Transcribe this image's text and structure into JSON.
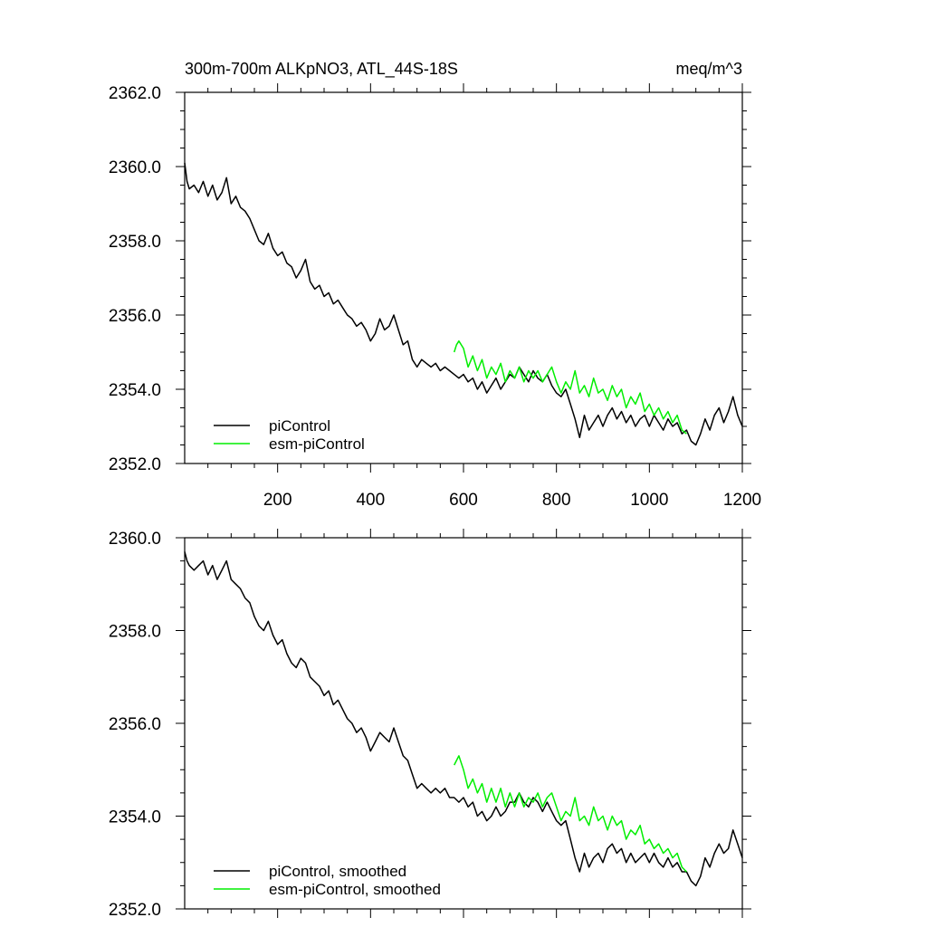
{
  "chart_data": [
    {
      "type": "line",
      "title_left": "300m-700m ALKpNO3, ATL_44S-18S",
      "title_right": "meq/m^3",
      "xlim": [
        0,
        1200
      ],
      "ylim": [
        2352.0,
        2362.0
      ],
      "x_ticks": [
        200,
        400,
        600,
        800,
        1000,
        1200
      ],
      "x_tick_labels": [
        "200",
        "400",
        "600",
        "800",
        "1000",
        "1200"
      ],
      "y_ticks": [
        2352.0,
        2354.0,
        2356.0,
        2358.0,
        2360.0,
        2362.0
      ],
      "y_tick_labels": [
        "2352.0",
        "2354.0",
        "2356.0",
        "2358.0",
        "2360.0",
        "2362.0"
      ],
      "legend_position": "bottom-left",
      "series": [
        {
          "name": "piControl",
          "color": "#000000",
          "x": [
            0,
            5,
            10,
            20,
            30,
            40,
            50,
            60,
            70,
            80,
            90,
            100,
            110,
            120,
            130,
            140,
            150,
            160,
            170,
            180,
            190,
            200,
            210,
            220,
            230,
            240,
            250,
            260,
            270,
            280,
            290,
            300,
            310,
            320,
            330,
            340,
            350,
            360,
            370,
            380,
            390,
            400,
            410,
            420,
            430,
            440,
            450,
            460,
            470,
            480,
            490,
            500,
            510,
            520,
            530,
            540,
            550,
            560,
            570,
            580,
            590,
            600,
            610,
            620,
            630,
            640,
            650,
            660,
            670,
            680,
            690,
            700,
            710,
            720,
            730,
            740,
            750,
            760,
            770,
            780,
            790,
            800,
            810,
            820,
            830,
            840,
            850,
            860,
            870,
            880,
            890,
            900,
            910,
            920,
            930,
            940,
            950,
            960,
            970,
            980,
            990,
            1000,
            1010,
            1020,
            1030,
            1040,
            1050,
            1060,
            1070,
            1080,
            1090,
            1100,
            1110,
            1120,
            1130,
            1140,
            1150,
            1160,
            1170,
            1180,
            1190,
            1200
          ],
          "values": [
            2360.1,
            2359.6,
            2359.4,
            2359.5,
            2359.3,
            2359.6,
            2359.2,
            2359.5,
            2359.1,
            2359.3,
            2359.7,
            2359.0,
            2359.2,
            2358.9,
            2358.8,
            2358.6,
            2358.3,
            2358.0,
            2357.9,
            2358.2,
            2357.8,
            2357.6,
            2357.7,
            2357.4,
            2357.3,
            2357.0,
            2357.2,
            2357.5,
            2356.9,
            2356.7,
            2356.8,
            2356.5,
            2356.6,
            2356.3,
            2356.4,
            2356.2,
            2356.0,
            2355.9,
            2355.7,
            2355.8,
            2355.6,
            2355.3,
            2355.5,
            2355.9,
            2355.6,
            2355.7,
            2356.0,
            2355.6,
            2355.2,
            2355.3,
            2354.8,
            2354.6,
            2354.8,
            2354.7,
            2354.6,
            2354.7,
            2354.5,
            2354.6,
            2354.5,
            2354.4,
            2354.3,
            2354.4,
            2354.2,
            2354.3,
            2354.0,
            2354.2,
            2353.9,
            2354.1,
            2354.3,
            2354.0,
            2354.2,
            2354.4,
            2354.3,
            2354.6,
            2354.4,
            2354.2,
            2354.5,
            2354.3,
            2354.2,
            2354.4,
            2354.1,
            2353.9,
            2353.8,
            2354.0,
            2353.6,
            2353.2,
            2352.7,
            2353.3,
            2352.9,
            2353.1,
            2353.3,
            2353.0,
            2353.3,
            2353.5,
            2353.2,
            2353.4,
            2353.1,
            2353.3,
            2353.0,
            2353.2,
            2353.3,
            2353.0,
            2353.3,
            2353.1,
            2352.9,
            2353.2,
            2353.0,
            2353.1,
            2352.8,
            2352.9,
            2352.6,
            2352.5,
            2352.8,
            2353.2,
            2352.9,
            2353.3,
            2353.5,
            2353.1,
            2353.4,
            2353.8,
            2353.3,
            2353.0
          ]
        },
        {
          "name": "esm-piControl",
          "color": "#00ee00",
          "x": [
            580,
            585,
            590,
            600,
            610,
            620,
            630,
            640,
            650,
            660,
            670,
            680,
            690,
            700,
            710,
            720,
            730,
            740,
            750,
            760,
            770,
            780,
            790,
            800,
            810,
            820,
            830,
            840,
            850,
            860,
            870,
            880,
            890,
            900,
            910,
            920,
            930,
            940,
            950,
            960,
            970,
            980,
            990,
            1000,
            1010,
            1020,
            1030,
            1040,
            1050,
            1060,
            1070,
            1080
          ],
          "values": [
            2355.0,
            2355.2,
            2355.3,
            2355.1,
            2354.6,
            2354.9,
            2354.5,
            2354.8,
            2354.3,
            2354.6,
            2354.4,
            2354.7,
            2354.2,
            2354.5,
            2354.3,
            2354.6,
            2354.2,
            2354.5,
            2354.3,
            2354.5,
            2354.2,
            2354.4,
            2354.6,
            2354.2,
            2353.9,
            2354.2,
            2354.0,
            2354.5,
            2353.9,
            2354.1,
            2353.8,
            2354.3,
            2353.9,
            2354.0,
            2353.7,
            2354.1,
            2353.8,
            2354.0,
            2353.5,
            2353.8,
            2353.6,
            2353.9,
            2353.4,
            2353.6,
            2353.3,
            2353.5,
            2353.2,
            2353.4,
            2353.1,
            2353.3,
            2352.9,
            2352.8
          ]
        }
      ]
    },
    {
      "type": "line",
      "xlim": [
        0,
        1200
      ],
      "ylim": [
        2352.0,
        2360.0
      ],
      "x_ticks": [
        200,
        400,
        600,
        800,
        1000,
        1200
      ],
      "y_ticks": [
        2352.0,
        2354.0,
        2356.0,
        2358.0,
        2360.0
      ],
      "y_tick_labels": [
        "2352.0",
        "2354.0",
        "2356.0",
        "2358.0",
        "2360.0"
      ],
      "legend_position": "bottom-left",
      "series": [
        {
          "name": "piControl, smoothed",
          "color": "#000000",
          "x": [
            0,
            5,
            10,
            20,
            30,
            40,
            50,
            60,
            70,
            80,
            90,
            100,
            110,
            120,
            130,
            140,
            150,
            160,
            170,
            180,
            190,
            200,
            210,
            220,
            230,
            240,
            250,
            260,
            270,
            280,
            290,
            300,
            310,
            320,
            330,
            340,
            350,
            360,
            370,
            380,
            390,
            400,
            410,
            420,
            430,
            440,
            450,
            460,
            470,
            480,
            490,
            500,
            510,
            520,
            530,
            540,
            550,
            560,
            570,
            580,
            590,
            600,
            610,
            620,
            630,
            640,
            650,
            660,
            670,
            680,
            690,
            700,
            710,
            720,
            730,
            740,
            750,
            760,
            770,
            780,
            790,
            800,
            810,
            820,
            830,
            840,
            850,
            860,
            870,
            880,
            890,
            900,
            910,
            920,
            930,
            940,
            950,
            960,
            970,
            980,
            990,
            1000,
            1010,
            1020,
            1030,
            1040,
            1050,
            1060,
            1070,
            1080,
            1090,
            1100,
            1110,
            1120,
            1130,
            1140,
            1150,
            1160,
            1170,
            1180,
            1190,
            1200
          ],
          "values": [
            2359.7,
            2359.5,
            2359.4,
            2359.3,
            2359.4,
            2359.5,
            2359.2,
            2359.4,
            2359.1,
            2359.3,
            2359.5,
            2359.1,
            2359.0,
            2358.9,
            2358.7,
            2358.6,
            2358.3,
            2358.1,
            2358.0,
            2358.2,
            2357.9,
            2357.7,
            2357.8,
            2357.5,
            2357.3,
            2357.2,
            2357.4,
            2357.3,
            2357.0,
            2356.9,
            2356.8,
            2356.6,
            2356.7,
            2356.4,
            2356.5,
            2356.3,
            2356.1,
            2356.0,
            2355.8,
            2355.9,
            2355.7,
            2355.4,
            2355.6,
            2355.8,
            2355.7,
            2355.6,
            2355.9,
            2355.6,
            2355.3,
            2355.2,
            2354.9,
            2354.6,
            2354.7,
            2354.6,
            2354.5,
            2354.6,
            2354.5,
            2354.6,
            2354.4,
            2354.4,
            2354.3,
            2354.4,
            2354.2,
            2354.3,
            2354.0,
            2354.1,
            2353.9,
            2354.0,
            2354.2,
            2354.0,
            2354.1,
            2354.3,
            2354.3,
            2354.5,
            2354.3,
            2354.2,
            2354.4,
            2354.3,
            2354.1,
            2354.3,
            2354.1,
            2353.9,
            2353.8,
            2353.9,
            2353.5,
            2353.1,
            2352.8,
            2353.2,
            2352.9,
            2353.1,
            2353.2,
            2353.0,
            2353.3,
            2353.4,
            2353.2,
            2353.3,
            2353.0,
            2353.2,
            2353.0,
            2353.1,
            2353.2,
            2353.0,
            2353.2,
            2353.0,
            2352.9,
            2353.1,
            2352.9,
            2353.0,
            2352.8,
            2352.8,
            2352.6,
            2352.5,
            2352.7,
            2353.1,
            2352.9,
            2353.2,
            2353.4,
            2353.2,
            2353.3,
            2353.7,
            2353.4,
            2353.1
          ]
        },
        {
          "name": "esm-piControl, smoothed",
          "color": "#00ee00",
          "x": [
            580,
            585,
            590,
            600,
            610,
            620,
            630,
            640,
            650,
            660,
            670,
            680,
            690,
            700,
            710,
            720,
            730,
            740,
            750,
            760,
            770,
            780,
            790,
            800,
            810,
            820,
            830,
            840,
            850,
            860,
            870,
            880,
            890,
            900,
            910,
            920,
            930,
            940,
            950,
            960,
            970,
            980,
            990,
            1000,
            1010,
            1020,
            1030,
            1040,
            1050,
            1060,
            1070,
            1080
          ],
          "values": [
            2355.1,
            2355.2,
            2355.3,
            2355.0,
            2354.6,
            2354.8,
            2354.5,
            2354.7,
            2354.3,
            2354.6,
            2354.3,
            2354.6,
            2354.2,
            2354.5,
            2354.2,
            2354.5,
            2354.2,
            2354.4,
            2354.3,
            2354.5,
            2354.2,
            2354.4,
            2354.5,
            2354.2,
            2353.9,
            2354.1,
            2354.0,
            2354.4,
            2353.9,
            2354.0,
            2353.8,
            2354.2,
            2353.9,
            2354.0,
            2353.7,
            2354.0,
            2353.8,
            2353.9,
            2353.5,
            2353.7,
            2353.6,
            2353.8,
            2353.4,
            2353.5,
            2353.3,
            2353.4,
            2353.2,
            2353.3,
            2353.1,
            2353.2,
            2352.9,
            2352.8
          ]
        }
      ]
    }
  ]
}
